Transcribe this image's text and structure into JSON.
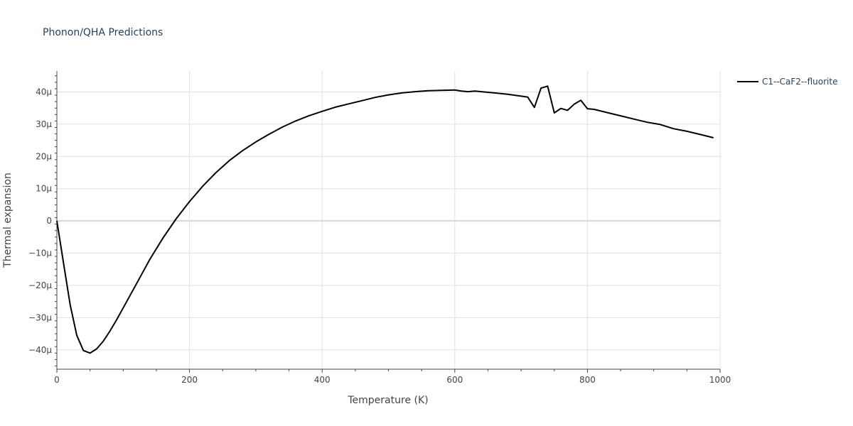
{
  "chart_data": {
    "type": "line",
    "title": "Phonon/QHA Predictions",
    "xlabel": "Temperature (K)",
    "ylabel": "Thermal expansion",
    "xlim": [
      0,
      1000
    ],
    "ylim": [
      -46,
      46.5
    ],
    "x_ticks": [
      {
        "value": 0,
        "label": "0"
      },
      {
        "value": 200,
        "label": "200"
      },
      {
        "value": 400,
        "label": "400"
      },
      {
        "value": 600,
        "label": "600"
      },
      {
        "value": 800,
        "label": "800"
      },
      {
        "value": 1000,
        "label": "1000"
      }
    ],
    "y_ticks": [
      {
        "value": -40,
        "label": "−40μ"
      },
      {
        "value": -30,
        "label": "−30μ"
      },
      {
        "value": -20,
        "label": "−20μ"
      },
      {
        "value": -10,
        "label": "−10μ"
      },
      {
        "value": 0,
        "label": "0"
      },
      {
        "value": 10,
        "label": "10μ"
      },
      {
        "value": 20,
        "label": "20μ"
      },
      {
        "value": 30,
        "label": "30μ"
      },
      {
        "value": 40,
        "label": "40μ"
      }
    ],
    "grid": true,
    "legend_position": "top-right",
    "series": [
      {
        "name": "C1--CaF2--fluorite",
        "color": "#000000",
        "x": [
          0,
          10,
          20,
          30,
          40,
          50,
          60,
          70,
          80,
          90,
          100,
          120,
          140,
          160,
          180,
          200,
          220,
          240,
          260,
          280,
          300,
          320,
          340,
          360,
          380,
          400,
          420,
          440,
          460,
          480,
          500,
          520,
          540,
          560,
          580,
          600,
          610,
          620,
          630,
          640,
          660,
          680,
          690,
          700,
          710,
          720,
          730,
          740,
          750,
          760,
          770,
          780,
          790,
          800,
          810,
          830,
          850,
          870,
          890,
          910,
          930,
          950,
          970,
          990
        ],
        "y": [
          0,
          -13,
          -26,
          -35.5,
          -40.2,
          -41,
          -39.7,
          -37.3,
          -34.2,
          -30.7,
          -27,
          -19.5,
          -12,
          -5.3,
          0.7,
          6,
          10.8,
          15,
          18.7,
          21.8,
          24.5,
          26.9,
          29.1,
          31,
          32.6,
          34,
          35.3,
          36.3,
          37.3,
          38.3,
          39.1,
          39.7,
          40.1,
          40.4,
          40.5,
          40.6,
          40.3,
          40.1,
          40.3,
          40.1,
          39.7,
          39.3,
          39.0,
          38.7,
          38.4,
          35.2,
          41.2,
          41.8,
          33.5,
          34.9,
          34.3,
          36.2,
          37.4,
          34.8,
          34.6,
          33.6,
          32.6,
          31.6,
          30.6,
          29.9,
          28.6,
          27.8,
          26.8,
          25.8
        ]
      }
    ]
  }
}
